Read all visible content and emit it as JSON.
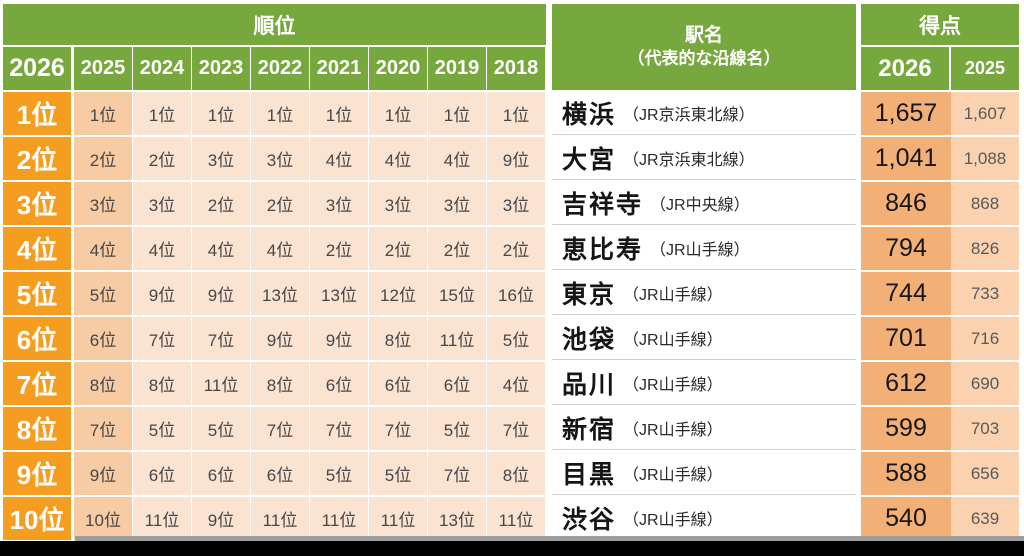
{
  "chart_data": {
    "type": "table",
    "header": {
      "rank_group": "順位",
      "station_group_line1": "駅名",
      "station_group_line2": "（代表的な沿線名）",
      "score_group": "得点",
      "rank_years": [
        "2026",
        "2025",
        "2024",
        "2023",
        "2022",
        "2021",
        "2020",
        "2019",
        "2018"
      ],
      "score_years": [
        "2026",
        "2025"
      ]
    },
    "rows": [
      {
        "rank_2026": "1位",
        "past_ranks": [
          "1位",
          "1位",
          "1位",
          "1位",
          "1位",
          "1位",
          "1位",
          "1位"
        ],
        "station": "横浜",
        "line": "（JR京浜東北線）",
        "score_2026": "1,657",
        "score_2025": "1,607"
      },
      {
        "rank_2026": "2位",
        "past_ranks": [
          "2位",
          "2位",
          "3位",
          "3位",
          "4位",
          "4位",
          "4位",
          "9位"
        ],
        "station": "大宮",
        "line": "（JR京浜東北線）",
        "score_2026": "1,041",
        "score_2025": "1,088"
      },
      {
        "rank_2026": "3位",
        "past_ranks": [
          "3位",
          "3位",
          "2位",
          "2位",
          "3位",
          "3位",
          "3位",
          "3位"
        ],
        "station": "吉祥寺",
        "line": "（JR中央線）",
        "score_2026": "846",
        "score_2025": "868"
      },
      {
        "rank_2026": "4位",
        "past_ranks": [
          "4位",
          "4位",
          "4位",
          "4位",
          "2位",
          "2位",
          "2位",
          "2位"
        ],
        "station": "恵比寿",
        "line": "（JR山手線）",
        "score_2026": "794",
        "score_2025": "826"
      },
      {
        "rank_2026": "5位",
        "past_ranks": [
          "5位",
          "9位",
          "9位",
          "13位",
          "13位",
          "12位",
          "15位",
          "16位"
        ],
        "station": "東京",
        "line": "（JR山手線）",
        "score_2026": "744",
        "score_2025": "733"
      },
      {
        "rank_2026": "6位",
        "past_ranks": [
          "6位",
          "7位",
          "7位",
          "9位",
          "9位",
          "8位",
          "11位",
          "5位"
        ],
        "station": "池袋",
        "line": "（JR山手線）",
        "score_2026": "701",
        "score_2025": "716"
      },
      {
        "rank_2026": "7位",
        "past_ranks": [
          "8位",
          "8位",
          "11位",
          "8位",
          "6位",
          "6位",
          "6位",
          "4位"
        ],
        "station": "品川",
        "line": "（JR山手線）",
        "score_2026": "612",
        "score_2025": "690"
      },
      {
        "rank_2026": "8位",
        "past_ranks": [
          "7位",
          "5位",
          "5位",
          "7位",
          "7位",
          "7位",
          "5位",
          "7位"
        ],
        "station": "新宿",
        "line": "（JR山手線）",
        "score_2026": "599",
        "score_2025": "703"
      },
      {
        "rank_2026": "9位",
        "past_ranks": [
          "9位",
          "6位",
          "6位",
          "6位",
          "5位",
          "5位",
          "7位",
          "8位"
        ],
        "station": "目黒",
        "line": "（JR山手線）",
        "score_2026": "588",
        "score_2025": "656"
      },
      {
        "rank_2026": "10位",
        "past_ranks": [
          "10位",
          "11位",
          "9位",
          "11位",
          "11位",
          "11位",
          "13位",
          "11位"
        ],
        "station": "渋谷",
        "line": "（JR山手線）",
        "score_2026": "540",
        "score_2025": "639"
      }
    ]
  },
  "colors": {
    "header_green": "#77A83E",
    "rank_orange": "#F59D20",
    "score_2026_fill": "#F2B077",
    "rank_2025_fill": "#F7CBA3",
    "score_2025_fill": "#FAD2B0",
    "light_peach_fill": "#FBE3D2",
    "bottom_gray_line": "#9E9E9E",
    "bottom_bar": "#000000"
  }
}
